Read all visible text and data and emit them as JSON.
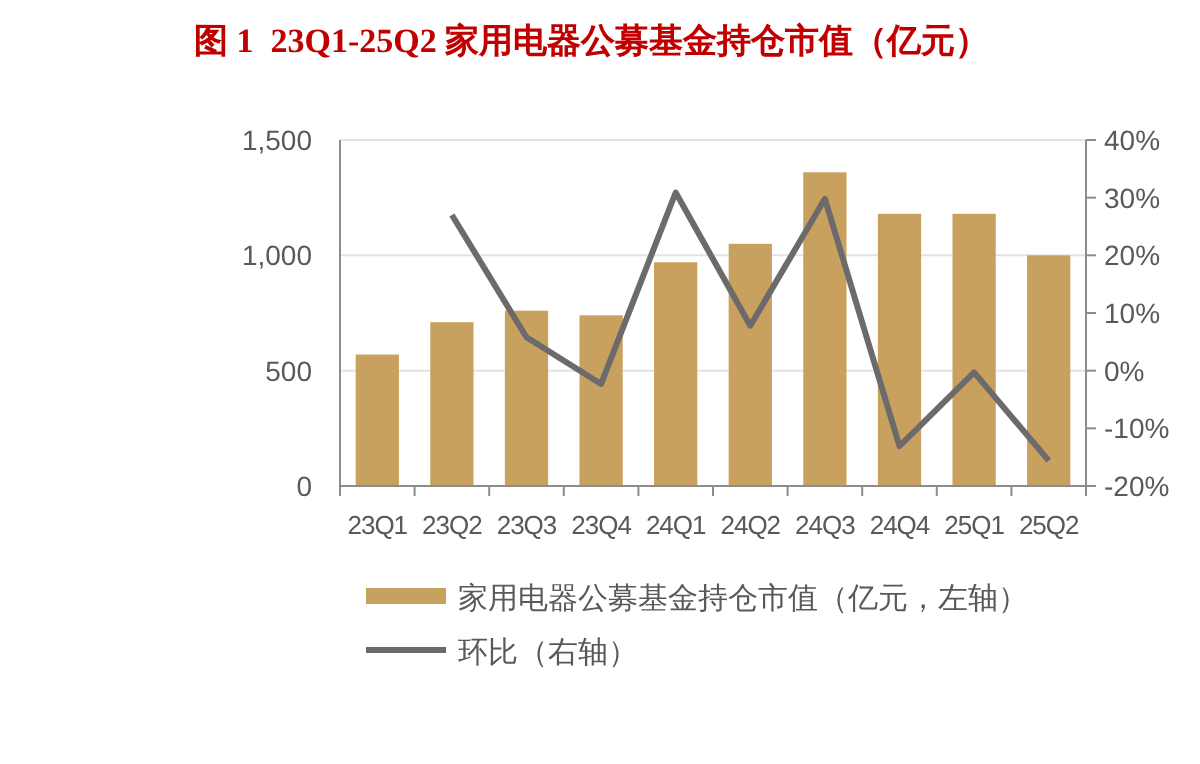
{
  "chart_data": {
    "type": "bar",
    "title": "图 1  23Q1-25Q2 家用电器公募基金持仓市值（亿元）",
    "categories": [
      "23Q1",
      "23Q2",
      "23Q3",
      "23Q4",
      "24Q1",
      "24Q2",
      "24Q3",
      "24Q4",
      "25Q1",
      "25Q2"
    ],
    "series": [
      {
        "name": "家用电器公募基金持仓市值（亿元，左轴）",
        "color": "#c9a15f",
        "values": [
          570,
          710,
          760,
          740,
          970,
          1050,
          1360,
          1180,
          1180,
          1000
        ]
      },
      {
        "name": "环比（右轴）",
        "type": "line",
        "axis": "y2",
        "color": "#6d6a6b",
        "values": [
          null,
          27.0,
          5.8,
          -2.3,
          30.9,
          7.8,
          29.8,
          -13.1,
          -0.3,
          -15.6
        ]
      }
    ],
    "ylim": [
      0,
      1500
    ],
    "yticks": [
      0,
      500,
      {
        "value": 1000,
        "label": "1,000"
      },
      {
        "value": 1500,
        "label": "1,500"
      }
    ],
    "y2lim": [
      -20,
      40
    ],
    "y2ticks": [
      {
        "value": -20,
        "label": "-20%"
      },
      {
        "value": -10,
        "label": "-10%"
      },
      {
        "value": 0,
        "label": "0%"
      },
      {
        "value": 10,
        "label": "10%"
      },
      {
        "value": 20,
        "label": "20%"
      },
      {
        "value": 30,
        "label": "30%"
      },
      {
        "value": 40,
        "label": "40%"
      }
    ],
    "grid": "y",
    "legend": "bottom",
    "marker": "none",
    "line_style": "solid"
  }
}
